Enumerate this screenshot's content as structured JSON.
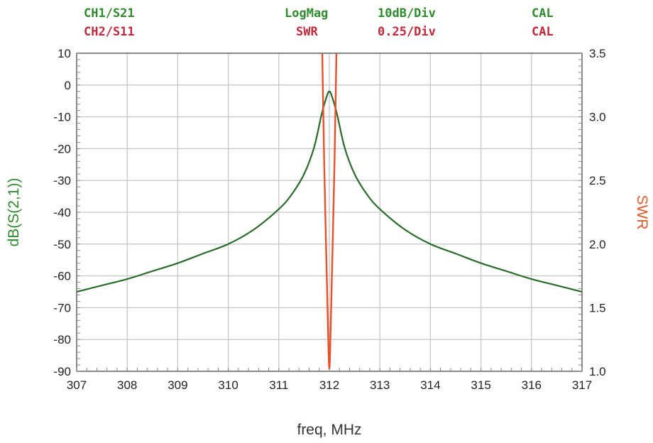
{
  "header": {
    "ch1": {
      "channel": "CH1/S21",
      "format": "LogMag",
      "scale": "10dB/Div",
      "status": "CAL"
    },
    "ch2": {
      "channel": "CH2/S11",
      "format": "SWR",
      "scale": "0.25/Div",
      "status": "CAL"
    }
  },
  "colors": {
    "ch1_text": "#2e8b2e",
    "ch2_text": "#c0283c",
    "s21_trace": "#2a6a2a",
    "swr_trace": "#e8502a",
    "swr_axis_label": "#e05a2a",
    "ylabel_left": "#2e8b2e",
    "grid": "#c8c8c8",
    "frame": "#666666"
  },
  "chart_data": {
    "type": "line",
    "xlabel": "freq, MHz",
    "ylabel": "dB(S(2,1))",
    "y2label": "SWR",
    "xlim": [
      307,
      317
    ],
    "ylim": [
      -90,
      10
    ],
    "y2lim": [
      1.0,
      3.5
    ],
    "x_ticks": [
      "307",
      "308",
      "309",
      "310",
      "311",
      "312",
      "313",
      "314",
      "315",
      "316",
      "317"
    ],
    "y_ticks": [
      "10",
      "0",
      "-10",
      "-20",
      "-30",
      "-40",
      "-50",
      "-60",
      "-70",
      "-80",
      "-90"
    ],
    "y2_ticks": [
      "3.5",
      "3.0",
      "2.5",
      "2.0",
      "1.5",
      "1.0"
    ],
    "grid": true,
    "series": [
      {
        "axis": "left",
        "x": [
          307,
          307.5,
          308,
          308.5,
          309,
          309.5,
          310,
          310.5,
          311,
          311.25,
          311.5,
          311.7,
          311.85,
          311.95,
          312,
          312.05,
          312.15,
          312.3,
          312.5,
          312.75,
          313,
          313.5,
          314,
          314.5,
          315,
          315.5,
          316,
          316.5,
          317
        ],
        "values": [
          -65,
          -63,
          -61,
          -58.5,
          -56,
          -53,
          -50,
          -45.5,
          -39,
          -34.5,
          -28,
          -19.5,
          -9,
          -3.5,
          -2,
          -3.5,
          -9,
          -19.5,
          -28,
          -34.5,
          -39,
          -45.5,
          -50,
          -53,
          -56,
          -58.5,
          -61,
          -63,
          -65
        ]
      },
      {
        "axis": "right",
        "x": [
          311.86,
          311.9,
          311.94,
          311.97,
          312,
          312.03,
          312.06,
          312.1,
          312.14
        ],
        "values": [
          3.5,
          2.6,
          1.9,
          1.4,
          1.02,
          1.4,
          1.9,
          2.6,
          3.5
        ]
      }
    ]
  }
}
